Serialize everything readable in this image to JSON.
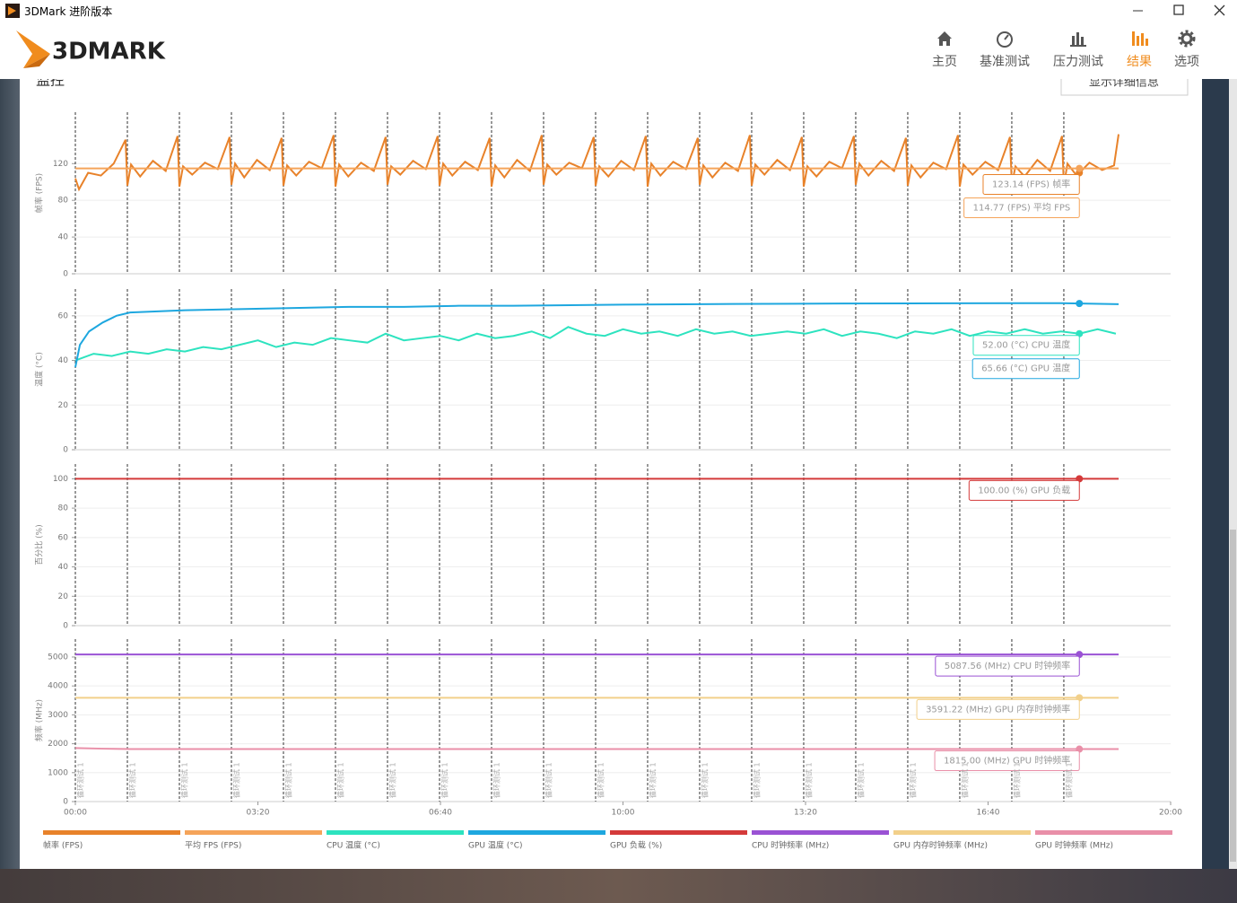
{
  "window": {
    "title": "3DMark 进阶版本"
  },
  "header": {
    "logo": "3DMARK",
    "nav": [
      "主页",
      "基准测试",
      "压力测试",
      "结果",
      "选项"
    ],
    "active": 3
  },
  "panel": {
    "title": "监控",
    "button": "显示详细信息"
  },
  "chart_data": [
    {
      "type": "line",
      "ylabel": "帧率 (FPS)",
      "xlim": [
        0,
        1200
      ],
      "ylim": [
        0,
        176
      ],
      "yticks": [
        0,
        40,
        80,
        120
      ],
      "grid": true,
      "cursor_x": 1100,
      "series": [
        {
          "name": "帧率 (FPS)",
          "color": "#e8822a",
          "tooltip": "123.14 (FPS) 帧率",
          "x": [
            0,
            4,
            14,
            28,
            42,
            55,
            57,
            61,
            71,
            85,
            99,
            112,
            114,
            118,
            128,
            142,
            156,
            169,
            171,
            175,
            185,
            199,
            213,
            226,
            228,
            232,
            242,
            256,
            270,
            283,
            285,
            289,
            299,
            313,
            327,
            340,
            342,
            346,
            356,
            370,
            384,
            397,
            399,
            403,
            413,
            427,
            441,
            454,
            456,
            460,
            470,
            484,
            498,
            511,
            513,
            517,
            527,
            541,
            555,
            568,
            570,
            574,
            584,
            598,
            612,
            625,
            627,
            631,
            641,
            655,
            669,
            682,
            684,
            688,
            698,
            712,
            726,
            739,
            741,
            745,
            755,
            769,
            783,
            796,
            798,
            802,
            812,
            826,
            840,
            853,
            855,
            859,
            869,
            883,
            897,
            910,
            912,
            916,
            926,
            940,
            954,
            967,
            969,
            973,
            983,
            997,
            1011,
            1024,
            1026,
            1030,
            1040,
            1054,
            1068,
            1081,
            1083,
            1087,
            1097,
            1111,
            1125,
            1138,
            1143
          ],
          "values": [
            104,
            92,
            110,
            107,
            120,
            146,
            96,
            119,
            106,
            123,
            112,
            150,
            95,
            117,
            108,
            121,
            114,
            149,
            97,
            120,
            105,
            124,
            113,
            148,
            96,
            118,
            107,
            122,
            115,
            151,
            95,
            119,
            106,
            121,
            112,
            149,
            97,
            117,
            108,
            123,
            114,
            150,
            96,
            120,
            107,
            122,
            113,
            148,
            95,
            118,
            105,
            124,
            112,
            151,
            97,
            119,
            108,
            121,
            115,
            149,
            96,
            117,
            106,
            123,
            113,
            150,
            95,
            120,
            107,
            122,
            114,
            148,
            97,
            118,
            105,
            121,
            112,
            151,
            96,
            119,
            108,
            124,
            113,
            149,
            95,
            117,
            106,
            122,
            115,
            150,
            97,
            120,
            107,
            123,
            112,
            148,
            96,
            118,
            105,
            121,
            114,
            151,
            95,
            119,
            108,
            122,
            113,
            149,
            97,
            117,
            106,
            124,
            112,
            150,
            96,
            120,
            107,
            121,
            113,
            118,
            152
          ]
        },
        {
          "name": "平均 FPS (FPS)",
          "color": "#f5a45a",
          "tooltip": "114.77 (FPS) 平均 FPS",
          "x": [
            0,
            1143
          ],
          "values": [
            114.77,
            114.77
          ]
        }
      ]
    },
    {
      "type": "line",
      "ylabel": "温度 (°C)",
      "xlim": [
        0,
        1200
      ],
      "ylim": [
        0,
        72
      ],
      "yticks": [
        0,
        20,
        40,
        60
      ],
      "grid": true,
      "cursor_x": 1100,
      "series": [
        {
          "name": "CPU 温度 (°C)",
          "color": "#2de3bf",
          "tooltip": "52.00 (°C) CPU 温度",
          "x": [
            0,
            20,
            40,
            60,
            80,
            100,
            120,
            140,
            160,
            180,
            200,
            220,
            240,
            260,
            280,
            300,
            320,
            340,
            360,
            380,
            400,
            420,
            440,
            460,
            480,
            500,
            520,
            540,
            560,
            580,
            600,
            620,
            640,
            660,
            680,
            700,
            720,
            740,
            760,
            780,
            800,
            820,
            840,
            860,
            880,
            900,
            920,
            940,
            960,
            980,
            1000,
            1020,
            1040,
            1060,
            1080,
            1100,
            1120,
            1140
          ],
          "values": [
            40,
            43,
            42,
            44,
            43,
            45,
            44,
            46,
            45,
            47,
            49,
            46,
            48,
            47,
            50,
            49,
            48,
            52,
            49,
            50,
            51,
            49,
            52,
            50,
            51,
            53,
            50,
            55,
            52,
            51,
            54,
            52,
            53,
            51,
            54,
            52,
            53,
            51,
            52,
            53,
            52,
            54,
            51,
            53,
            52,
            50,
            53,
            52,
            54,
            51,
            53,
            52,
            54,
            52,
            53,
            52,
            54,
            52
          ]
        },
        {
          "name": "GPU 温度 (°C)",
          "color": "#1ea7df",
          "tooltip": "65.66 (°C) GPU 温度",
          "x": [
            0,
            5,
            15,
            30,
            45,
            60,
            90,
            120,
            180,
            240,
            300,
            360,
            420,
            480,
            600,
            720,
            840,
            960,
            1080,
            1143
          ],
          "values": [
            37,
            47,
            53,
            57,
            60,
            61.5,
            62,
            62.5,
            63,
            63.5,
            64,
            64,
            64.5,
            64.5,
            65,
            65.3,
            65.5,
            65.6,
            65.66,
            65.2
          ]
        }
      ]
    },
    {
      "type": "line",
      "ylabel": "百分比 (%)",
      "xlim": [
        0,
        1200
      ],
      "ylim": [
        0,
        110
      ],
      "yticks": [
        0,
        20,
        40,
        60,
        80,
        100
      ],
      "grid": true,
      "cursor_x": 1100,
      "series": [
        {
          "name": "GPU 负载 (%)",
          "color": "#d43a3a",
          "tooltip": "100.00 (%) GPU 负载",
          "x": [
            0,
            1143
          ],
          "values": [
            100,
            100
          ]
        }
      ]
    },
    {
      "type": "line",
      "ylabel": "频率 (MHz)",
      "xlim": [
        0,
        1200
      ],
      "ylim": [
        0,
        5620
      ],
      "yticks": [
        0,
        1000,
        2000,
        3000,
        4000,
        5000
      ],
      "grid": true,
      "cursor_x": 1100,
      "xticks": [
        {
          "value": 0,
          "label": "00:00"
        },
        {
          "value": 200,
          "label": "03:20"
        },
        {
          "value": 400,
          "label": "06:40"
        },
        {
          "value": 600,
          "label": "10:00"
        },
        {
          "value": 800,
          "label": "13:20"
        },
        {
          "value": 1000,
          "label": "16:40"
        },
        {
          "value": 1200,
          "label": "20:00"
        }
      ],
      "markers": {
        "x": [
          0,
          57,
          114,
          171,
          228,
          285,
          342,
          399,
          456,
          513,
          570,
          627,
          684,
          741,
          798,
          855,
          912,
          969,
          1026,
          1083
        ],
        "label": "循环测试 1"
      },
      "series": [
        {
          "name": "CPU 时钟频率 (MHz)",
          "color": "#9a52d4",
          "tooltip": "5087.56 (MHz) CPU 时钟频率",
          "x": [
            0,
            1143
          ],
          "values": [
            5087.56,
            5087.56
          ]
        },
        {
          "name": "GPU 内存时钟频率 (MHz)",
          "color": "#f2d08a",
          "tooltip": "3591.22 (MHz) GPU 内存时钟频率",
          "x": [
            0,
            1143
          ],
          "values": [
            3591.22,
            3591.22
          ]
        },
        {
          "name": "GPU 时钟频率 (MHz)",
          "color": "#e98fa8",
          "tooltip": "1815.00 (MHz) GPU 时钟频率",
          "x": [
            0,
            30,
            60,
            1143
          ],
          "values": [
            1850,
            1830,
            1815,
            1815
          ]
        }
      ]
    }
  ]
}
